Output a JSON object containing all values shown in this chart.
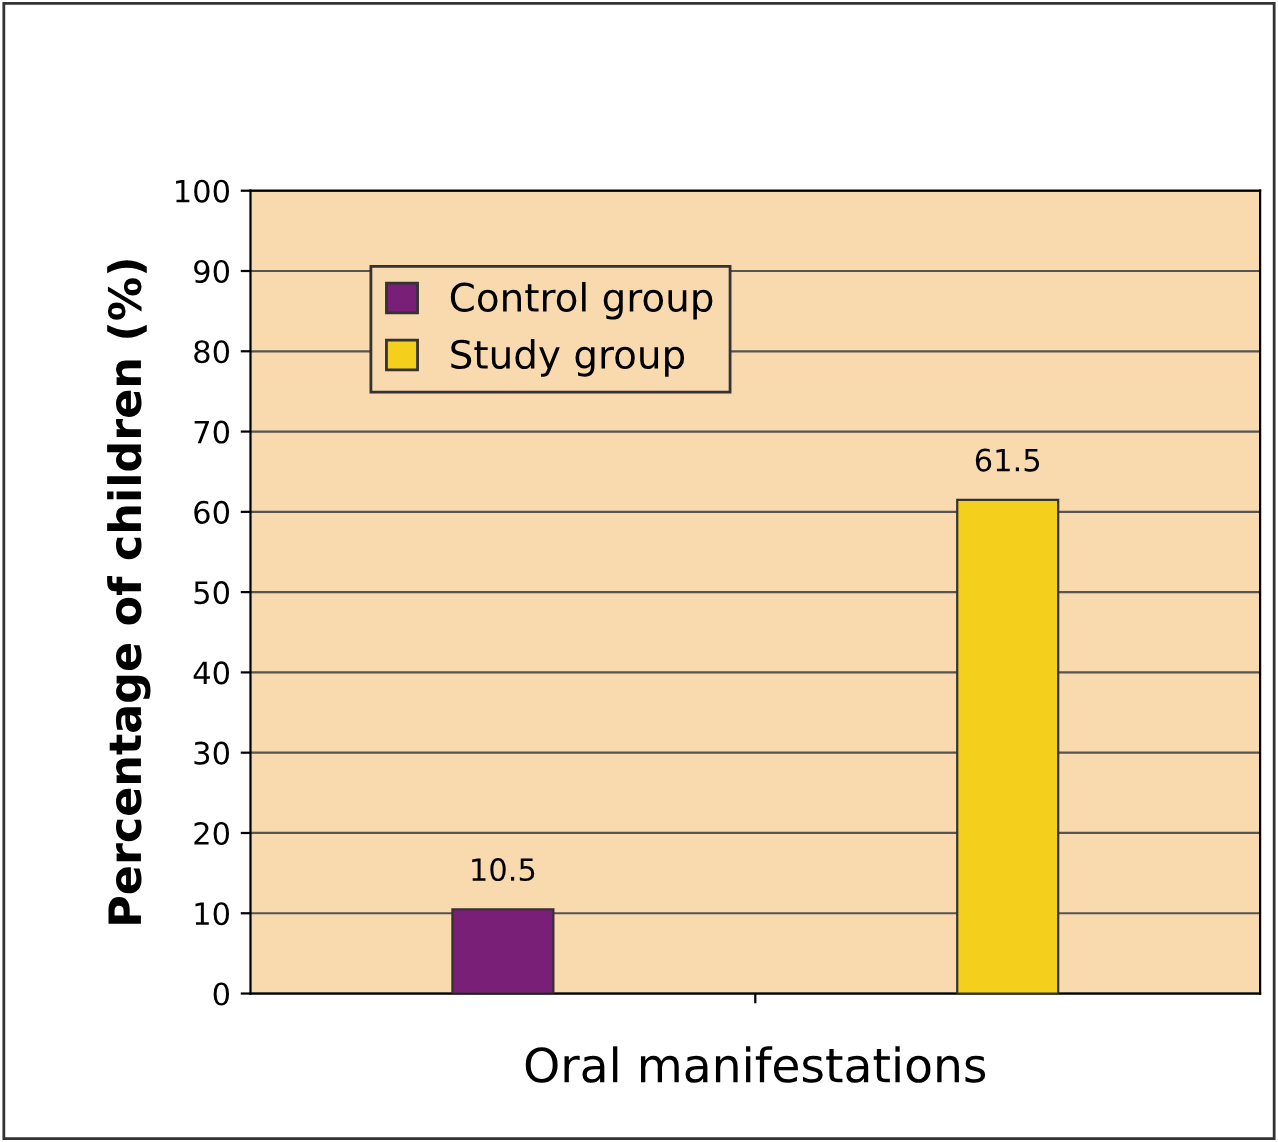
{
  "chart_data": {
    "type": "bar",
    "categories": [
      null
    ],
    "xlabel": "Oral manifestations",
    "ylabel": "Percentage of children (%)",
    "series": [
      {
        "name": "Control group",
        "color": "#7a1f78",
        "values": [
          10.5
        ]
      },
      {
        "name": "Study group",
        "color": "#f4cf1c",
        "values": [
          61.5
        ]
      }
    ],
    "ylim": [
      0,
      100
    ],
    "yticks": [
      0,
      10,
      20,
      30,
      40,
      50,
      60,
      70,
      80,
      90,
      100
    ],
    "grid": "y",
    "legend": "top left",
    "data_labels": true
  }
}
